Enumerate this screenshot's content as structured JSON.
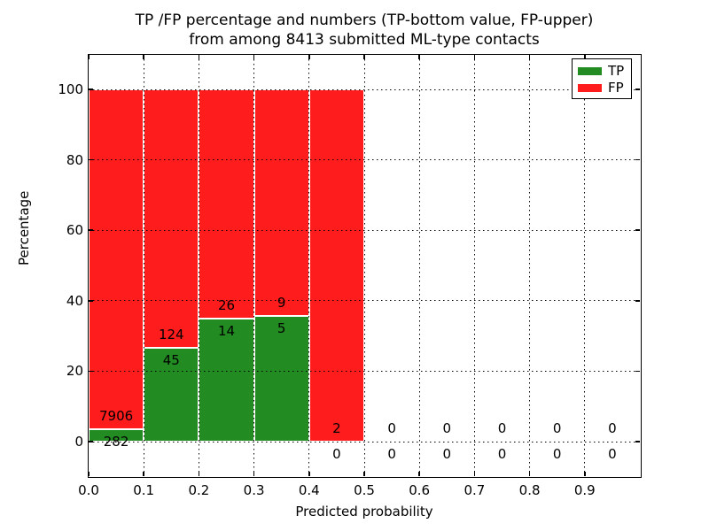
{
  "title": {
    "line1": "TP /FP percentage and numbers (TP-bottom value, FP-upper)",
    "line2": "from among 8413 submitted ML-type contacts"
  },
  "axes": {
    "xlabel": "Predicted probability",
    "ylabel": "Percentage"
  },
  "legend": {
    "items": [
      {
        "label": "TP",
        "color": "#228b22"
      },
      {
        "label": "FP",
        "color": "#ff1c1c"
      }
    ]
  },
  "colors": {
    "tp": "#228b22",
    "fp": "#ff1c1c",
    "grid": "#000000",
    "frame": "#000000"
  },
  "chart_data": {
    "type": "bar",
    "stacked": true,
    "unit": "percent_of_bin_total",
    "title": "TP /FP percentage and numbers (TP-bottom value, FP-upper) from among 8413 submitted ML-type contacts",
    "xlabel": "Predicted probability",
    "ylabel": "Percentage",
    "total_contacts": 8413,
    "bin_width": 0.1,
    "bin_starts": [
      0.0,
      0.1,
      0.2,
      0.3,
      0.4,
      0.5,
      0.6,
      0.7,
      0.8,
      0.9
    ],
    "series": [
      {
        "name": "TP",
        "color": "#228b22",
        "counts": [
          282,
          45,
          14,
          5,
          0,
          0,
          0,
          0,
          0,
          0
        ]
      },
      {
        "name": "FP",
        "color": "#ff1c1c",
        "counts": [
          7906,
          124,
          26,
          9,
          2,
          0,
          0,
          0,
          0,
          0
        ]
      }
    ],
    "annotation_note": "TP count shown below segment boundary, FP count shown above it; zeros shown around baseline for empty bins",
    "xticks": [
      "0.0",
      "0.1",
      "0.2",
      "0.3",
      "0.4",
      "0.5",
      "0.6",
      "0.7",
      "0.8",
      "0.9"
    ],
    "yticks": [
      0,
      20,
      40,
      60,
      80,
      100
    ],
    "xlim": [
      0.0,
      1.0
    ],
    "ylim": [
      -10,
      110
    ],
    "grid": "dotted",
    "legend_position": "upper right"
  }
}
